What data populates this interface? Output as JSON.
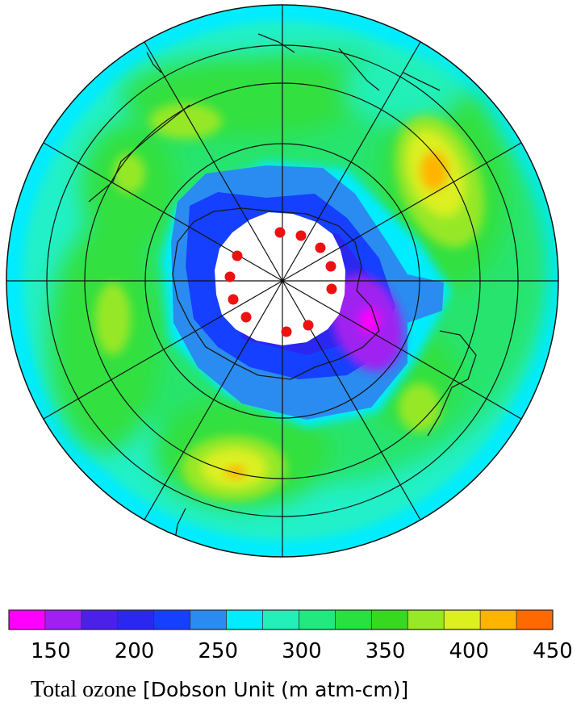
{
  "map": {
    "projection": "south-polar-stereographic",
    "variable": "total-ozone",
    "polar_night_mask": "white",
    "station_marker_color": "#ee1111",
    "station_count": 13,
    "meridian_count": 12,
    "latitude_circle_count": 3
  },
  "colorbar": {
    "colors": [
      "#ff00ff",
      "#a020f0",
      "#4b20e8",
      "#2a28f0",
      "#1540ff",
      "#2a8cf0",
      "#00ecff",
      "#22f0b8",
      "#22e880",
      "#28e040",
      "#38d820",
      "#96e828",
      "#dcf020",
      "#ffb400",
      "#ff6a00"
    ],
    "tick_labels": [
      "150",
      "200",
      "250",
      "300",
      "350",
      "400",
      "450"
    ],
    "tick_values": [
      150,
      200,
      250,
      300,
      350,
      400,
      450
    ],
    "range": [
      125,
      450
    ]
  },
  "caption": {
    "title": "Total ozone",
    "unit": "[Dobson Unit (m atm-cm)]"
  }
}
